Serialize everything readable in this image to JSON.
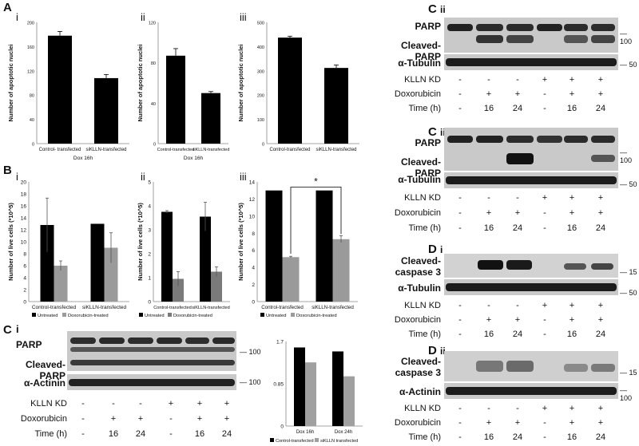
{
  "panels": {
    "A": "A",
    "B": "B",
    "C": "C",
    "D": "D",
    "i": "i",
    "ii": "ii",
    "iii": "iii"
  },
  "conditions": {
    "kllnkd": "KLLN KD",
    "doxorubicin": "Doxorubicin",
    "time": "Time (h)",
    "kllnkd_vals": [
      "-",
      "-",
      "-",
      "+",
      "+",
      "+"
    ],
    "dox_vals": [
      "-",
      "+",
      "+",
      "-",
      "+",
      "+"
    ],
    "time_vals": [
      "-",
      "16",
      "24",
      "-",
      "16",
      "24"
    ]
  },
  "blots": {
    "parp": "PARP",
    "cleaved_parp": "Cleaved-PARP",
    "a_tubulin": "α-Tubulin",
    "a_actinin": "α-Actinin",
    "cleaved_caspase": "Cleaved-\ncaspase 3",
    "mw100": "100",
    "mw50": "50",
    "mw15": "15"
  },
  "chart_data": [
    {
      "id": "Ai",
      "type": "bar",
      "categories": [
        "Control- transfected",
        "siKLLN-transfected"
      ],
      "values": [
        178,
        108
      ],
      "errors": [
        7,
        6
      ],
      "xlabel": "Dox 16h",
      "ylabel": "Number of apoptotic nuclei",
      "ylim": [
        0,
        200
      ],
      "yticks": [
        0,
        40,
        80,
        120,
        160,
        200
      ]
    },
    {
      "id": "Aii",
      "type": "bar",
      "categories": [
        "Control-transfected",
        "siKLLN-transfected"
      ],
      "values": [
        87,
        50
      ],
      "errors": [
        7,
        1.5
      ],
      "xlabel": "Dox 16h",
      "ylabel": "Number of apoptotic nuclei",
      "ylim": [
        0,
        120
      ],
      "yticks": [
        0,
        40,
        80,
        120
      ]
    },
    {
      "id": "Aiii",
      "type": "bar",
      "categories": [
        "Control-transfected",
        "siKLLN-transfected"
      ],
      "values": [
        437,
        312
      ],
      "errors": [
        6,
        12
      ],
      "xlabel": "",
      "ylabel": "Number of apoptotic nuclei",
      "ylim": [
        0,
        500
      ],
      "yticks": [
        0,
        100,
        200,
        300,
        400,
        500
      ]
    },
    {
      "id": "Bi",
      "type": "bar",
      "categories": [
        "Control-transfected",
        "siKLLN-transfected"
      ],
      "series": [
        {
          "name": "Untreated",
          "values": [
            12.8,
            13
          ],
          "errors": [
            4.5,
            0
          ]
        },
        {
          "name": "Doxorubicin-treated",
          "values": [
            6,
            9
          ],
          "errors": [
            0.8,
            2.5
          ]
        }
      ],
      "ylabel": "Number of live cells (*10^5)",
      "ylim": [
        0,
        20
      ],
      "yticks": [
        0,
        2,
        4,
        6,
        8,
        10,
        12,
        14,
        16,
        18,
        20
      ]
    },
    {
      "id": "Bii",
      "type": "bar",
      "categories": [
        "Control-transfected",
        "siKLLN-transfected"
      ],
      "series": [
        {
          "name": "Untreated",
          "values": [
            3.75,
            3.55
          ],
          "errors": [
            0.05,
            0.6
          ]
        },
        {
          "name": "Doxorubicin-treated",
          "values": [
            0.95,
            1.25
          ],
          "errors": [
            0.3,
            0.2
          ]
        }
      ],
      "ylabel": "Number of live cells (*10^5)",
      "ylim": [
        0,
        5
      ],
      "yticks": [
        0,
        1,
        2,
        3,
        4,
        5
      ]
    },
    {
      "id": "Biii",
      "type": "bar",
      "categories": [
        "Control-transfected",
        "siKLLN-transfected"
      ],
      "series": [
        {
          "name": "Untreated",
          "values": [
            13,
            13
          ],
          "errors": [
            0,
            0
          ]
        },
        {
          "name": "Doxorubicin-treated",
          "values": [
            5.2,
            7.3
          ],
          "errors": [
            0.1,
            0.4
          ]
        }
      ],
      "ylabel": "Number of live cells (*10^5)",
      "ylim": [
        0,
        14
      ],
      "yticks": [
        0,
        2,
        4,
        6,
        8,
        10,
        12,
        14
      ],
      "annotation": "*"
    },
    {
      "id": "Ci",
      "type": "bar",
      "categories": [
        "Dox 16h",
        "Dox 24h"
      ],
      "series": [
        {
          "name": "Control-transfected",
          "values": [
            1.58,
            1.5
          ]
        },
        {
          "name": "siKLLN transfected",
          "values": [
            1.28,
            1.0
          ]
        }
      ],
      "ylim": [
        0,
        1.7
      ],
      "yticks": [
        0,
        0.85,
        1.7
      ]
    }
  ]
}
